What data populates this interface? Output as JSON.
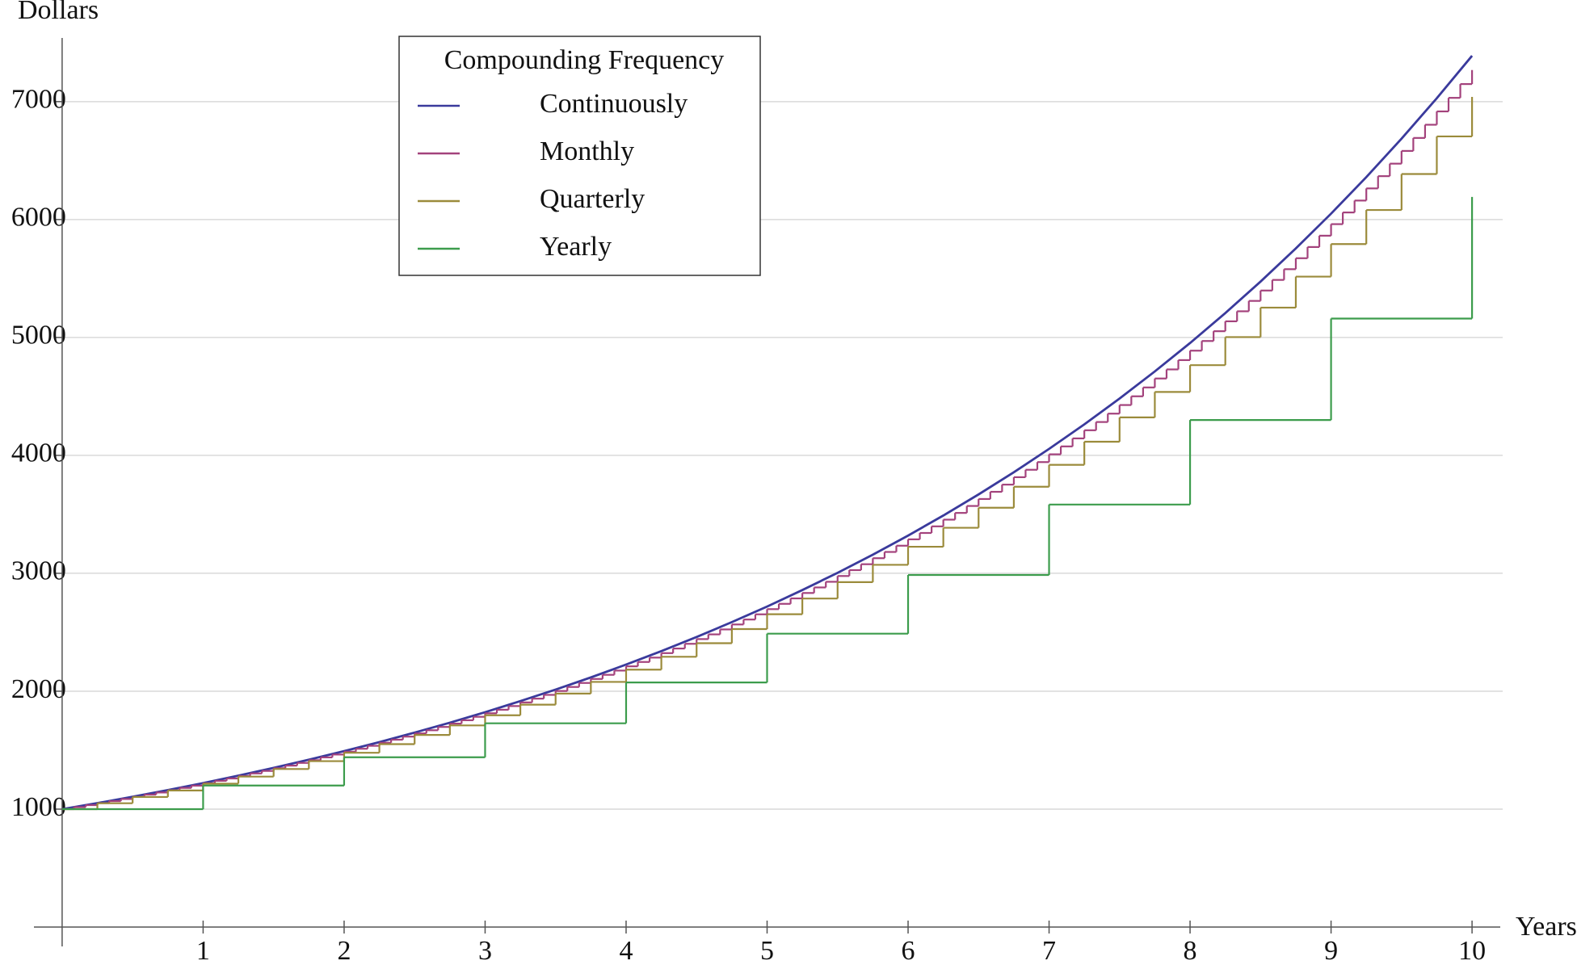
{
  "chart_data": {
    "type": "line",
    "ylabel": "Dollars",
    "xlabel": "Years",
    "legend_title": "Compounding Frequency",
    "legend_position": "upper left",
    "grid": true,
    "xlim": [
      -0.2,
      10.2
    ],
    "ylim": [
      0,
      7540
    ],
    "xticks": [
      1,
      2,
      3,
      4,
      5,
      6,
      7,
      8,
      9,
      10
    ],
    "yticks": [
      1000,
      2000,
      3000,
      4000,
      5000,
      6000,
      7000
    ],
    "series": [
      {
        "name": "Continuously",
        "color": "#3a3a9c",
        "step": false,
        "x": [
          0,
          0.25,
          0.5,
          0.75,
          1,
          1.25,
          1.5,
          1.75,
          2,
          2.25,
          2.5,
          2.75,
          3,
          3.25,
          3.5,
          3.75,
          4,
          4.25,
          4.5,
          4.75,
          5,
          5.25,
          5.5,
          5.75,
          6,
          6.25,
          6.5,
          6.75,
          7,
          7.25,
          7.5,
          7.75,
          8,
          8.25,
          8.5,
          8.75,
          9,
          9.25,
          9.5,
          9.75,
          10
        ],
        "values": [
          1000,
          1051,
          1105,
          1162,
          1221,
          1284,
          1350,
          1419,
          1492,
          1568,
          1649,
          1733,
          1822,
          1916,
          2014,
          2117,
          2226,
          2340,
          2460,
          2586,
          2718,
          2858,
          3004,
          3158,
          3320,
          3490,
          3669,
          3857,
          4055,
          4263,
          4482,
          4712,
          4953,
          5207,
          5474,
          5755,
          6050,
          6360,
          6686,
          7029,
          7389
        ]
      },
      {
        "name": "Monthly",
        "color": "#a3427c",
        "step": true,
        "x": [
          0,
          0.0833,
          0.1667,
          0.25,
          0.3333,
          0.4167,
          0.5,
          0.5833,
          0.6667,
          0.75,
          0.8333,
          0.9167,
          1,
          1.0833,
          1.1667,
          1.25,
          1.3333,
          1.4167,
          1.5,
          1.5833,
          1.6667,
          1.75,
          1.8333,
          1.9167,
          2,
          2.0833,
          2.1667,
          2.25,
          2.3333,
          2.4167,
          2.5,
          2.5833,
          2.6667,
          2.75,
          2.8333,
          2.9167,
          3,
          3.0833,
          3.1667,
          3.25,
          3.3333,
          3.4167,
          3.5,
          3.5833,
          3.6667,
          3.75,
          3.8333,
          3.9167,
          4,
          4.0833,
          4.1667,
          4.25,
          4.3333,
          4.4167,
          4.5,
          4.5833,
          4.6667,
          4.75,
          4.8333,
          4.9167,
          5,
          5.0833,
          5.1667,
          5.25,
          5.3333,
          5.4167,
          5.5,
          5.5833,
          5.6667,
          5.75,
          5.8333,
          5.9167,
          6,
          6.0833,
          6.1667,
          6.25,
          6.3333,
          6.4167,
          6.5,
          6.5833,
          6.6667,
          6.75,
          6.8333,
          6.9167,
          7,
          7.0833,
          7.1667,
          7.25,
          7.3333,
          7.4167,
          7.5,
          7.5833,
          7.6667,
          7.75,
          7.8333,
          7.9167,
          8,
          8.0833,
          8.1667,
          8.25,
          8.3333,
          8.4167,
          8.5,
          8.5833,
          8.6667,
          8.75,
          8.8333,
          8.9167,
          9,
          9.0833,
          9.1667,
          9.25,
          9.3333,
          9.4167,
          9.5,
          9.5833,
          9.6667,
          9.75,
          9.8333,
          9.9167,
          10
        ],
        "values": [
          1000,
          1017,
          1034,
          1051,
          1068,
          1086,
          1104,
          1123,
          1141,
          1160,
          1180,
          1199,
          1219,
          1240,
          1260,
          1281,
          1303,
          1324,
          1347,
          1369,
          1392,
          1415,
          1439,
          1463,
          1487,
          1512,
          1537,
          1563,
          1589,
          1615,
          1642,
          1669,
          1697,
          1725,
          1754,
          1783,
          1813,
          1843,
          1874,
          1905,
          1937,
          1969,
          2002,
          2036,
          2070,
          2104,
          2139,
          2175,
          2211,
          2248,
          2285,
          2323,
          2362,
          2402,
          2442,
          2482,
          2524,
          2566,
          2608,
          2652,
          2696,
          2741,
          2787,
          2833,
          2880,
          2928,
          2977,
          3027,
          3077,
          3128,
          3181,
          3234,
          3288,
          3342,
          3398,
          3455,
          3512,
          3571,
          3630,
          3691,
          3752,
          3815,
          3878,
          3943,
          4009,
          4076,
          4144,
          4213,
          4283,
          4354,
          4427,
          4501,
          4576,
          4652,
          4729,
          4808,
          4888,
          4970,
          5053,
          5137,
          5222,
          5310,
          5398,
          5488,
          5579,
          5672,
          5767,
          5863,
          5961,
          6060,
          6161,
          6264,
          6368,
          6474,
          6582,
          6692,
          6804,
          6917,
          7032,
          7149,
          7268
        ]
      },
      {
        "name": "Quarterly",
        "color": "#9b8b3b",
        "step": true,
        "x": [
          0,
          0.25,
          0.5,
          0.75,
          1,
          1.25,
          1.5,
          1.75,
          2,
          2.25,
          2.5,
          2.75,
          3,
          3.25,
          3.5,
          3.75,
          4,
          4.25,
          4.5,
          4.75,
          5,
          5.25,
          5.5,
          5.75,
          6,
          6.25,
          6.5,
          6.75,
          7,
          7.25,
          7.5,
          7.75,
          8,
          8.25,
          8.5,
          8.75,
          9,
          9.25,
          9.5,
          9.75,
          10
        ],
        "values": [
          1000,
          1050,
          1103,
          1158,
          1216,
          1276,
          1340,
          1407,
          1478,
          1551,
          1629,
          1710,
          1796,
          1886,
          1980,
          2079,
          2183,
          2292,
          2407,
          2527,
          2653,
          2786,
          2925,
          3072,
          3225,
          3386,
          3556,
          3734,
          3920,
          4116,
          4322,
          4538,
          4765,
          5003,
          5253,
          5516,
          5792,
          6081,
          6386,
          6705,
          7040
        ]
      },
      {
        "name": "Yearly",
        "color": "#3c9c4c",
        "step": true,
        "x": [
          0,
          1,
          2,
          3,
          4,
          5,
          6,
          7,
          8,
          9,
          10
        ],
        "values": [
          1000,
          1200,
          1440,
          1728,
          2074,
          2488,
          2986,
          3583,
          4300,
          5160,
          6192
        ]
      }
    ]
  }
}
